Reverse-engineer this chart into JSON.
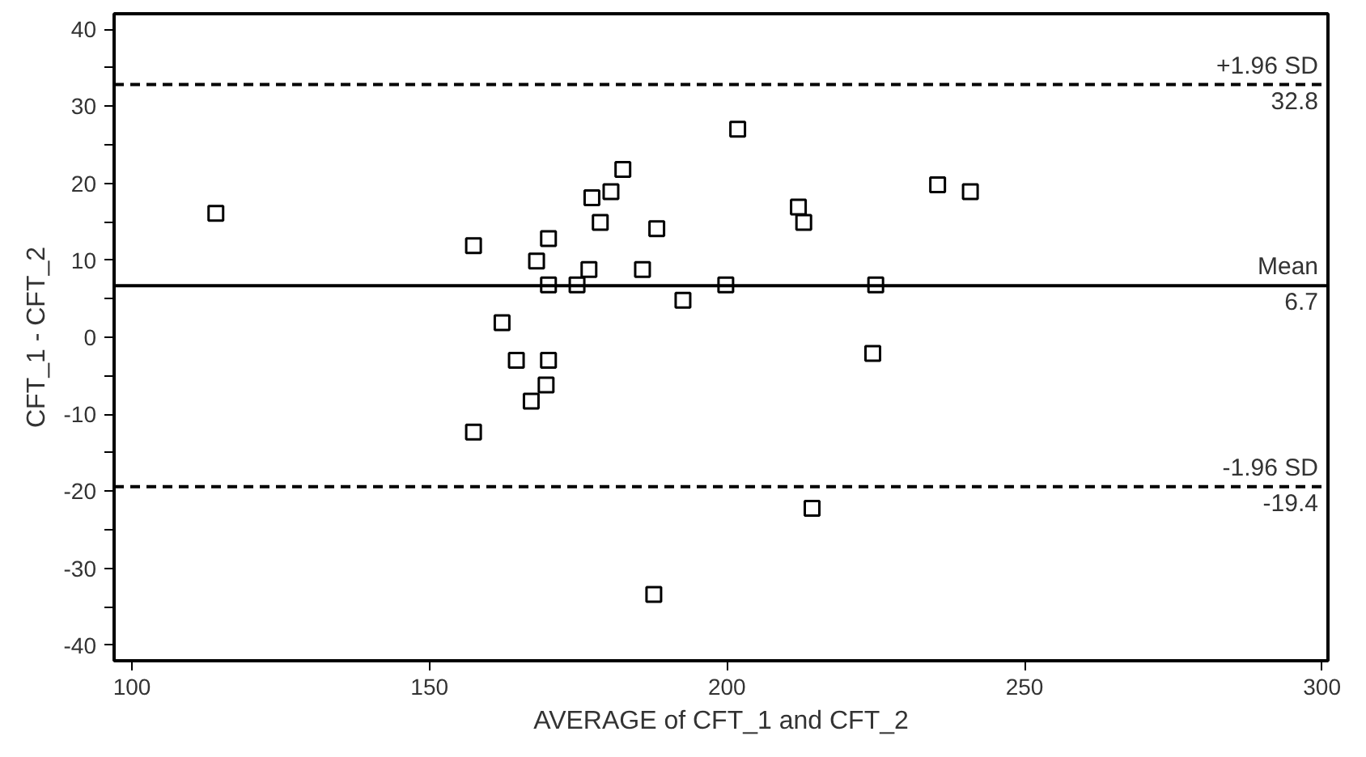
{
  "chart_data": {
    "type": "scatter",
    "xlabel": "AVERAGE of CFT_1 and CFT_2",
    "ylabel": "CFT_1 - CFT_2",
    "xlim": [
      97,
      301
    ],
    "ylim": [
      -42,
      42
    ],
    "xticks": [
      100,
      150,
      200,
      250,
      300
    ],
    "yticks": [
      -40,
      {
        "value": -35,
        "label": null
      },
      -30,
      {
        "value": -25,
        "label": null
      },
      -20,
      {
        "value": -15,
        "label": null
      },
      -10,
      {
        "value": -5,
        "label": null
      },
      0,
      {
        "value": 5,
        "label": null
      },
      10,
      {
        "value": 15,
        "label": null
      },
      20,
      {
        "value": 25,
        "label": null
      },
      30,
      {
        "value": 35,
        "label": null
      },
      40
    ],
    "grid": false,
    "marker": "square",
    "series": [
      {
        "color": "#000000",
        "x": [
          114.1,
          157.4,
          170,
          168,
          177.3,
          180.5,
          182.5,
          178.7,
          188.2,
          176.8,
          185.8,
          170,
          174.8,
          192.6,
          162.2,
          164.6,
          170,
          169.6,
          167.1,
          157.4,
          187.7,
          201.8,
          199.8,
          225,
          212,
          212.9,
          235.4,
          240.9,
          224.5,
          214.3
        ],
        "values": [
          16.1,
          11.9,
          12.8,
          9.9,
          18.1,
          18.9,
          21.8,
          14.9,
          14.1,
          8.8,
          8.8,
          6.8,
          6.8,
          4.8,
          1.9,
          -3.0,
          -3.0,
          -6.2,
          -8.3,
          -12.3,
          -33.4,
          27,
          6.8,
          6.8,
          16.9,
          14.9,
          19.8,
          18.9,
          -2.1,
          -22.2
        ]
      }
    ],
    "ref_lines": [
      {
        "axis": "y",
        "value": 32.8,
        "label": "+1.96 SD",
        "line_style": "dashed",
        "color": "#000000"
      },
      {
        "axis": "y",
        "value": 6.7,
        "label": "Mean",
        "line_style": "solid",
        "color": "#000000"
      },
      {
        "axis": "y",
        "value": -19.4,
        "label": "-1.96 SD",
        "line_style": "dashed",
        "color": "#000000"
      }
    ],
    "annotations": [
      "32.8",
      "6.7",
      "-19.4"
    ]
  }
}
